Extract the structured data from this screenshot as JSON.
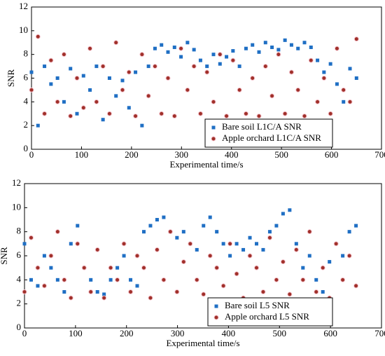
{
  "chart_data": [
    {
      "type": "scatter",
      "xlabel": "Experimental time/s",
      "ylabel": "SNR",
      "xlim": [
        0,
        700
      ],
      "ylim": [
        0,
        12
      ],
      "xticks": [
        0,
        100,
        200,
        300,
        400,
        500,
        600,
        700
      ],
      "yticks": [
        0,
        2,
        4,
        6,
        8,
        10,
        12
      ],
      "x": [
        0,
        13,
        26,
        39,
        52,
        65,
        78,
        91,
        104,
        117,
        130,
        143,
        156,
        169,
        182,
        195,
        208,
        221,
        234,
        247,
        260,
        273,
        286,
        299,
        312,
        325,
        338,
        351,
        364,
        377,
        390,
        403,
        416,
        429,
        442,
        455,
        468,
        481,
        494,
        507,
        520,
        533,
        546,
        559,
        572,
        585,
        598,
        611,
        624,
        637,
        650
      ],
      "legend": "lower right",
      "series": [
        {
          "name": "Bare soil L1C/A SNR",
          "color": "#1f6fc4",
          "marker": "square",
          "values": [
            6.5,
            2,
            7,
            5.5,
            6,
            4,
            6.8,
            3,
            6.2,
            5,
            7,
            2.5,
            6,
            4.5,
            5.8,
            3.5,
            6.5,
            2,
            7,
            8.5,
            8.8,
            8.2,
            8.6,
            7.8,
            9,
            8.4,
            7.5,
            7,
            8,
            7.2,
            7.8,
            8.3,
            7,
            8.5,
            8.8,
            8.2,
            9,
            8.6,
            8.4,
            9.2,
            8.8,
            8.5,
            9,
            8.6,
            7.5,
            6.5,
            7.2,
            5.5,
            4,
            6.8,
            6
          ]
        },
        {
          "name": "Apple orchard L1C/A SNR",
          "color": "#a0302a",
          "marker": "circle",
          "values": [
            5,
            9.5,
            3,
            7.5,
            4,
            8,
            2.8,
            6,
            3.5,
            8.5,
            4,
            7,
            3,
            9,
            5,
            6.5,
            2.8,
            8,
            4.5,
            7,
            3,
            6,
            2.8,
            8.5,
            5,
            7,
            3,
            6.5,
            4,
            8,
            2.8,
            7.5,
            5,
            3,
            6,
            2.8,
            7,
            4.5,
            8,
            3,
            6.5,
            5,
            2.8,
            7.5,
            4,
            6,
            3,
            8.5,
            5,
            4,
            9.3
          ]
        }
      ]
    },
    {
      "type": "scatter",
      "xlabel": "Experimental time/s",
      "ylabel": "SNR",
      "xlim": [
        0,
        700
      ],
      "ylim": [
        0,
        12
      ],
      "xticks": [
        0,
        100,
        200,
        300,
        400,
        500,
        600,
        700
      ],
      "yticks": [
        0,
        2,
        4,
        6,
        8,
        10,
        12
      ],
      "x": [
        0,
        13,
        26,
        39,
        52,
        65,
        78,
        91,
        104,
        117,
        130,
        143,
        156,
        169,
        182,
        195,
        208,
        221,
        234,
        247,
        260,
        273,
        286,
        299,
        312,
        325,
        338,
        351,
        364,
        377,
        390,
        403,
        416,
        429,
        442,
        455,
        468,
        481,
        494,
        507,
        520,
        533,
        546,
        559,
        572,
        585,
        598,
        611,
        624,
        637,
        650
      ],
      "legend": "lower right",
      "series": [
        {
          "name": "Bare soil L5 SNR",
          "color": "#1f6fc4",
          "marker": "square",
          "values": [
            7,
            4,
            3.5,
            6,
            5,
            4,
            3,
            7,
            8.5,
            5,
            4,
            3,
            2.8,
            4,
            5,
            6,
            4,
            3.5,
            8,
            8.5,
            9,
            9.2,
            8,
            7.5,
            8,
            7,
            6.5,
            8.5,
            9.2,
            8,
            7,
            6,
            7,
            6.5,
            7.5,
            7,
            6.5,
            8,
            8.5,
            9.5,
            9.8,
            7,
            5,
            6,
            4,
            3,
            5.5,
            7,
            6,
            8,
            8.5
          ]
        },
        {
          "name": "Apple orchard L5 SNR",
          "color": "#a0302a",
          "marker": "circle",
          "values": [
            3,
            7.5,
            5,
            3.5,
            6,
            8,
            4,
            2.5,
            7,
            5,
            3,
            6.5,
            2.5,
            5,
            4,
            7,
            3,
            6,
            5,
            2.5,
            6.5,
            4,
            8,
            3,
            5.5,
            7,
            4,
            2.8,
            6,
            5,
            3.5,
            7,
            4.5,
            2.5,
            6,
            5,
            3,
            7.5,
            4,
            5.5,
            2.8,
            6.5,
            4,
            8,
            3,
            5,
            2.5,
            7,
            4,
            6,
            3.5
          ]
        }
      ]
    }
  ]
}
